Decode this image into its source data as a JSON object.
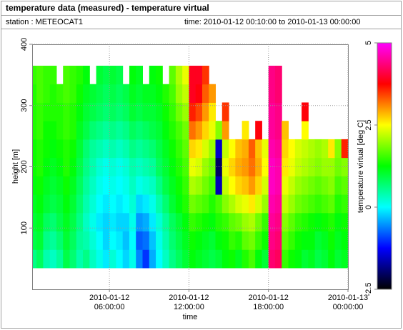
{
  "header": {
    "title": "temperature data (measured) - temperature virtual",
    "station": "station : METEOCAT1",
    "time_range": "time: 2010-01-12 00:10:00 to 2010-01-13 00:00:00"
  },
  "chart_data": {
    "type": "heatmap",
    "xlabel": "time",
    "ylabel": "height [m]",
    "colorbar_label": "temperature virtual [deg C]",
    "xlim": [
      0.17,
      24
    ],
    "xticks": [
      {
        "value": 6,
        "label": "2010-01-12\n06:00:00"
      },
      {
        "value": 12,
        "label": "2010-01-12\n12:00:00"
      },
      {
        "value": 18,
        "label": "2010-01-12\n18:00:00"
      },
      {
        "value": 24,
        "label": "2010-01-13\n00:00:00"
      }
    ],
    "ylim": [
      0,
      400
    ],
    "yticks": [
      100,
      200,
      300,
      400
    ],
    "clim": [
      -2.5,
      5
    ],
    "cticks": [
      -2.5,
      0,
      2.5,
      5
    ],
    "colorscale": [
      "#000000",
      "#0000ff",
      "#00ffff",
      "#00ff00",
      "#ffff00",
      "#ff0000",
      "#ff00ff"
    ],
    "grid": true,
    "x": [
      0.25,
      0.75,
      1.25,
      1.75,
      2.25,
      2.75,
      3.25,
      3.75,
      4.25,
      4.75,
      5.25,
      5.75,
      6.25,
      6.75,
      7.25,
      7.75,
      8.25,
      8.75,
      9.25,
      9.75,
      10.25,
      10.75,
      11.25,
      11.75,
      12.25,
      12.75,
      13.25,
      13.75,
      14.25,
      14.75,
      15.25,
      15.75,
      16.25,
      16.75,
      17.25,
      17.75,
      18.25,
      18.75,
      19.25,
      19.75,
      20.25,
      20.75,
      21.25,
      21.75,
      22.25,
      22.75,
      23.25,
      23.75
    ],
    "y": [
      50,
      80,
      110,
      140,
      170,
      200,
      230,
      260,
      290,
      320,
      350
    ],
    "z": [
      [
        0.6,
        0.8,
        0.4,
        0.3,
        0.5,
        0.9,
        0.7,
        0.4,
        0.6,
        0.3,
        0.1,
        -0.1,
        0.2,
        0.0,
        -0.2,
        0.1,
        -0.6,
        -1.0,
        -0.4,
        0.0,
        0.3,
        0.6,
        0.8,
        1.0,
        1.2,
        1.1,
        1.0,
        0.9,
        1.0,
        1.2,
        1.3,
        1.1,
        1.4,
        1.6,
        1.2,
        1.0,
        4.3,
        4.2,
        1.5,
        1.3,
        1.2,
        1.0,
        1.1,
        0.9,
        1.0,
        1.2,
        1.0,
        1.1
      ],
      [
        0.9,
        1.0,
        0.6,
        0.5,
        0.7,
        1.0,
        0.8,
        0.5,
        0.4,
        0.2,
        0.0,
        -0.2,
        0.0,
        -0.1,
        -0.3,
        0.0,
        -0.8,
        -0.7,
        -0.3,
        0.1,
        0.4,
        0.7,
        0.9,
        1.1,
        1.3,
        1.2,
        1.1,
        1.0,
        1.2,
        1.3,
        1.5,
        1.4,
        1.7,
        1.8,
        1.5,
        1.3,
        4.4,
        4.3,
        1.7,
        1.5,
        1.3,
        1.2,
        1.2,
        1.0,
        1.1,
        1.3,
        1.1,
        1.2
      ],
      [
        1.0,
        1.1,
        0.8,
        0.7,
        0.9,
        1.1,
        0.9,
        0.6,
        0.3,
        0.1,
        -0.1,
        -0.2,
        -0.1,
        -0.2,
        -0.2,
        0.1,
        -0.5,
        -0.4,
        -0.1,
        0.2,
        0.5,
        0.8,
        1.0,
        1.2,
        1.5,
        1.4,
        1.3,
        1.2,
        1.4,
        1.5,
        1.7,
        1.8,
        2.0,
        2.1,
        1.8,
        1.5,
        4.5,
        4.4,
        1.9,
        1.7,
        1.5,
        1.4,
        1.3,
        1.2,
        1.3,
        1.4,
        1.2,
        1.3
      ],
      [
        1.1,
        1.2,
        1.0,
        0.9,
        1.0,
        1.2,
        1.0,
        0.7,
        0.4,
        0.2,
        0.0,
        -0.1,
        0.0,
        -0.1,
        0.0,
        0.2,
        -0.2,
        -0.1,
        0.1,
        0.4,
        0.7,
        1.0,
        1.2,
        1.4,
        1.8,
        1.7,
        1.6,
        1.4,
        1.6,
        1.9,
        2.1,
        2.3,
        2.4,
        2.6,
        2.3,
        2.0,
        4.6,
        4.5,
        2.2,
        2.0,
        1.8,
        1.7,
        1.6,
        1.5,
        1.6,
        1.7,
        1.4,
        1.5
      ],
      [
        1.2,
        1.3,
        1.1,
        1.0,
        1.1,
        1.3,
        1.1,
        0.8,
        0.5,
        0.3,
        0.1,
        0.0,
        0.1,
        0.0,
        0.1,
        0.3,
        0.1,
        0.2,
        0.3,
        0.6,
        0.9,
        1.1,
        1.3,
        1.5,
        2.1,
        2.0,
        1.8,
        1.6,
        -1.6,
        2.2,
        2.5,
        2.7,
        2.8,
        3.0,
        2.7,
        2.3,
        4.7,
        4.6,
        2.4,
        2.2,
        2.0,
        1.9,
        1.8,
        1.7,
        1.8,
        1.9,
        1.6,
        1.7
      ],
      [
        1.3,
        1.4,
        1.2,
        1.1,
        1.2,
        1.4,
        1.2,
        0.9,
        0.6,
        0.4,
        0.2,
        0.1,
        0.2,
        0.1,
        0.2,
        0.4,
        0.3,
        0.4,
        0.5,
        0.8,
        1.0,
        1.2,
        1.4,
        1.6,
        2.4,
        2.3,
        2.0,
        1.8,
        -2.0,
        2.4,
        2.7,
        2.9,
        3.0,
        3.2,
        2.9,
        2.5,
        4.7,
        4.6,
        2.6,
        2.4,
        2.2,
        2.1,
        2.0,
        1.9,
        2.0,
        2.0,
        1.8,
        1.9
      ],
      [
        1.3,
        1.4,
        1.3,
        1.2,
        1.3,
        1.4,
        1.3,
        1.0,
        0.7,
        0.5,
        0.4,
        0.3,
        0.4,
        0.3,
        0.4,
        0.6,
        0.5,
        0.6,
        0.7,
        0.9,
        1.1,
        1.3,
        1.5,
        1.7,
        2.7,
        2.6,
        2.3,
        2.0,
        -1.5,
        2.2,
        2.5,
        2.8,
        2.9,
        3.3,
        2.8,
        2.4,
        4.6,
        4.5,
        2.7,
        2.5,
        2.3,
        2.2,
        2.1,
        2.0,
        2.1,
        2.6,
        1.9,
        3.6
      ],
      [
        1.4,
        1.5,
        1.3,
        1.3,
        1.4,
        1.5,
        1.4,
        1.1,
        0.9,
        0.7,
        0.6,
        0.5,
        0.6,
        0.5,
        0.6,
        0.8,
        0.7,
        0.8,
        0.9,
        1.0,
        1.2,
        1.4,
        1.6,
        1.8,
        3.2,
        3.0,
        2.7,
        2.4,
        1.9,
        3.0,
        null,
        null,
        2.6,
        null,
        3.8,
        null,
        4.5,
        4.4,
        2.8,
        null,
        null,
        2.5,
        null,
        null,
        null,
        null,
        null,
        null
      ],
      [
        1.4,
        1.5,
        1.4,
        1.4,
        1.4,
        1.5,
        1.4,
        1.2,
        1.0,
        0.9,
        0.8,
        0.7,
        0.8,
        0.7,
        0.8,
        1.0,
        0.9,
        1.0,
        1.0,
        1.1,
        1.3,
        1.5,
        1.8,
        2.0,
        3.6,
        3.4,
        3.0,
        2.6,
        null,
        3.5,
        null,
        null,
        null,
        null,
        null,
        null,
        4.5,
        4.4,
        null,
        null,
        null,
        3.8,
        null,
        null,
        null,
        null,
        null,
        null
      ],
      [
        1.4,
        1.6,
        1.5,
        1.4,
        1.5,
        1.6,
        1.5,
        1.3,
        1.1,
        1.0,
        0.9,
        0.8,
        0.9,
        0.8,
        0.9,
        1.1,
        1.0,
        1.1,
        1.1,
        1.2,
        1.4,
        1.6,
        2.0,
        2.2,
        3.9,
        3.8,
        3.3,
        3.0,
        null,
        null,
        null,
        null,
        null,
        null,
        null,
        null,
        4.4,
        4.3,
        null,
        null,
        null,
        null,
        null,
        null,
        null,
        null,
        null,
        null
      ],
      [
        1.5,
        1.6,
        1.5,
        1.5,
        null,
        1.6,
        1.5,
        1.4,
        1.2,
        null,
        1.0,
        0.9,
        1.0,
        0.9,
        null,
        1.2,
        1.1,
        null,
        1.2,
        1.3,
        null,
        1.7,
        2.1,
        2.4,
        3.9,
        3.9,
        3.5,
        null,
        null,
        null,
        null,
        null,
        null,
        null,
        null,
        null,
        4.4,
        4.3,
        null,
        null,
        null,
        null,
        null,
        null,
        null,
        null,
        null,
        null
      ]
    ]
  }
}
